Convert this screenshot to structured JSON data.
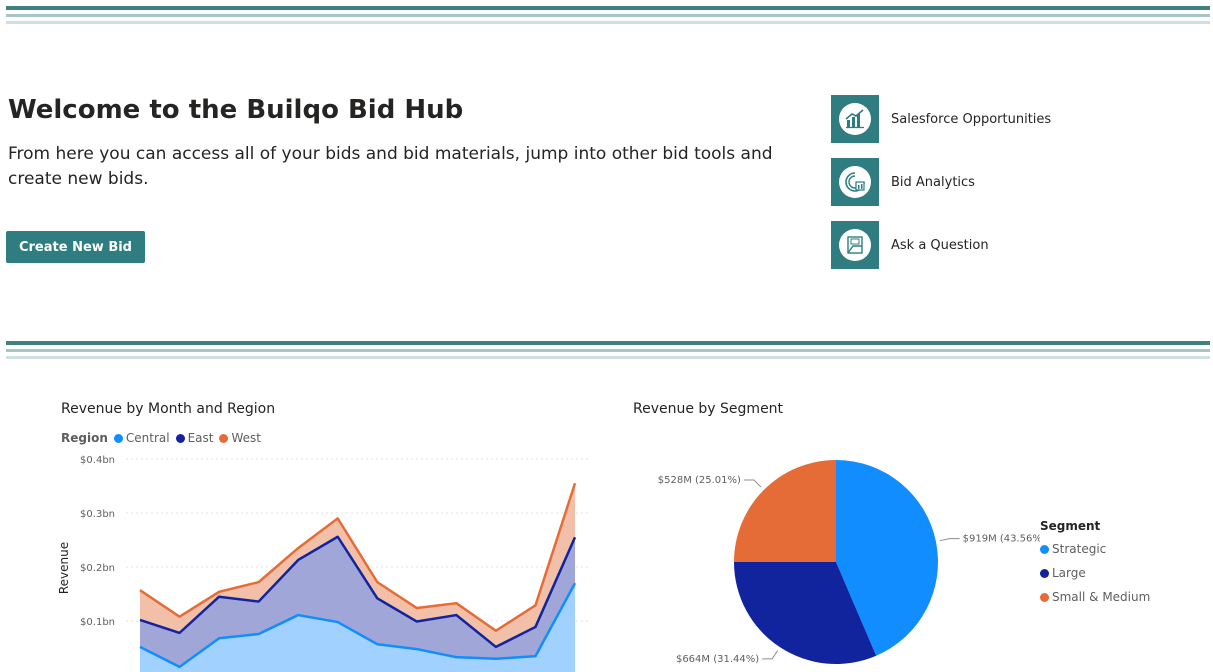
{
  "header": {
    "title": "Welcome to the Builqo Bid Hub",
    "subtitle": "From here you can access all of your bids and bid materials, jump into other bid tools and create new bids.",
    "create_button": "Create New Bid"
  },
  "quick_links": [
    {
      "label": "Salesforce Opportunities",
      "icon": "bar-chart-icon"
    },
    {
      "label": "Bid Analytics",
      "icon": "analytics-icon"
    },
    {
      "label": "Ask a Question",
      "icon": "question-icon"
    }
  ],
  "colors": {
    "teal": "#2f7d80",
    "central": "#118dff",
    "east": "#12239e",
    "west": "#e66c37"
  },
  "chart_data": [
    {
      "type": "area",
      "title": "Revenue by Month and Region",
      "ylabel": "Revenue",
      "legend_title": "Region",
      "y_ticks": [
        "$0.4bn",
        "$0.3bn",
        "$0.2bn",
        "$0.1bn"
      ],
      "ylim": [
        0,
        0.4
      ],
      "series": [
        {
          "name": "Central",
          "values": [
            0.052,
            0.015,
            0.068,
            0.076,
            0.111,
            0.098,
            0.057,
            0.048,
            0.033,
            0.03,
            0.035,
            0.17
          ]
        },
        {
          "name": "East",
          "values": [
            0.05,
            0.063,
            0.077,
            0.06,
            0.102,
            0.158,
            0.085,
            0.051,
            0.078,
            0.022,
            0.054,
            0.085
          ]
        },
        {
          "name": "West",
          "values": [
            0.055,
            0.03,
            0.009,
            0.036,
            0.022,
            0.034,
            0.03,
            0.025,
            0.022,
            0.03,
            0.04,
            0.1
          ]
        }
      ]
    },
    {
      "type": "pie",
      "title": "Revenue by Segment",
      "legend_title": "Segment",
      "slices": [
        {
          "name": "Strategic",
          "value": 43.56,
          "label": "$919M (43.56%)"
        },
        {
          "name": "Large",
          "value": 31.44,
          "label": "$664M (31.44%)"
        },
        {
          "name": "Small & Medium",
          "value": 25.01,
          "label": "$528M (25.01%)"
        }
      ]
    }
  ]
}
